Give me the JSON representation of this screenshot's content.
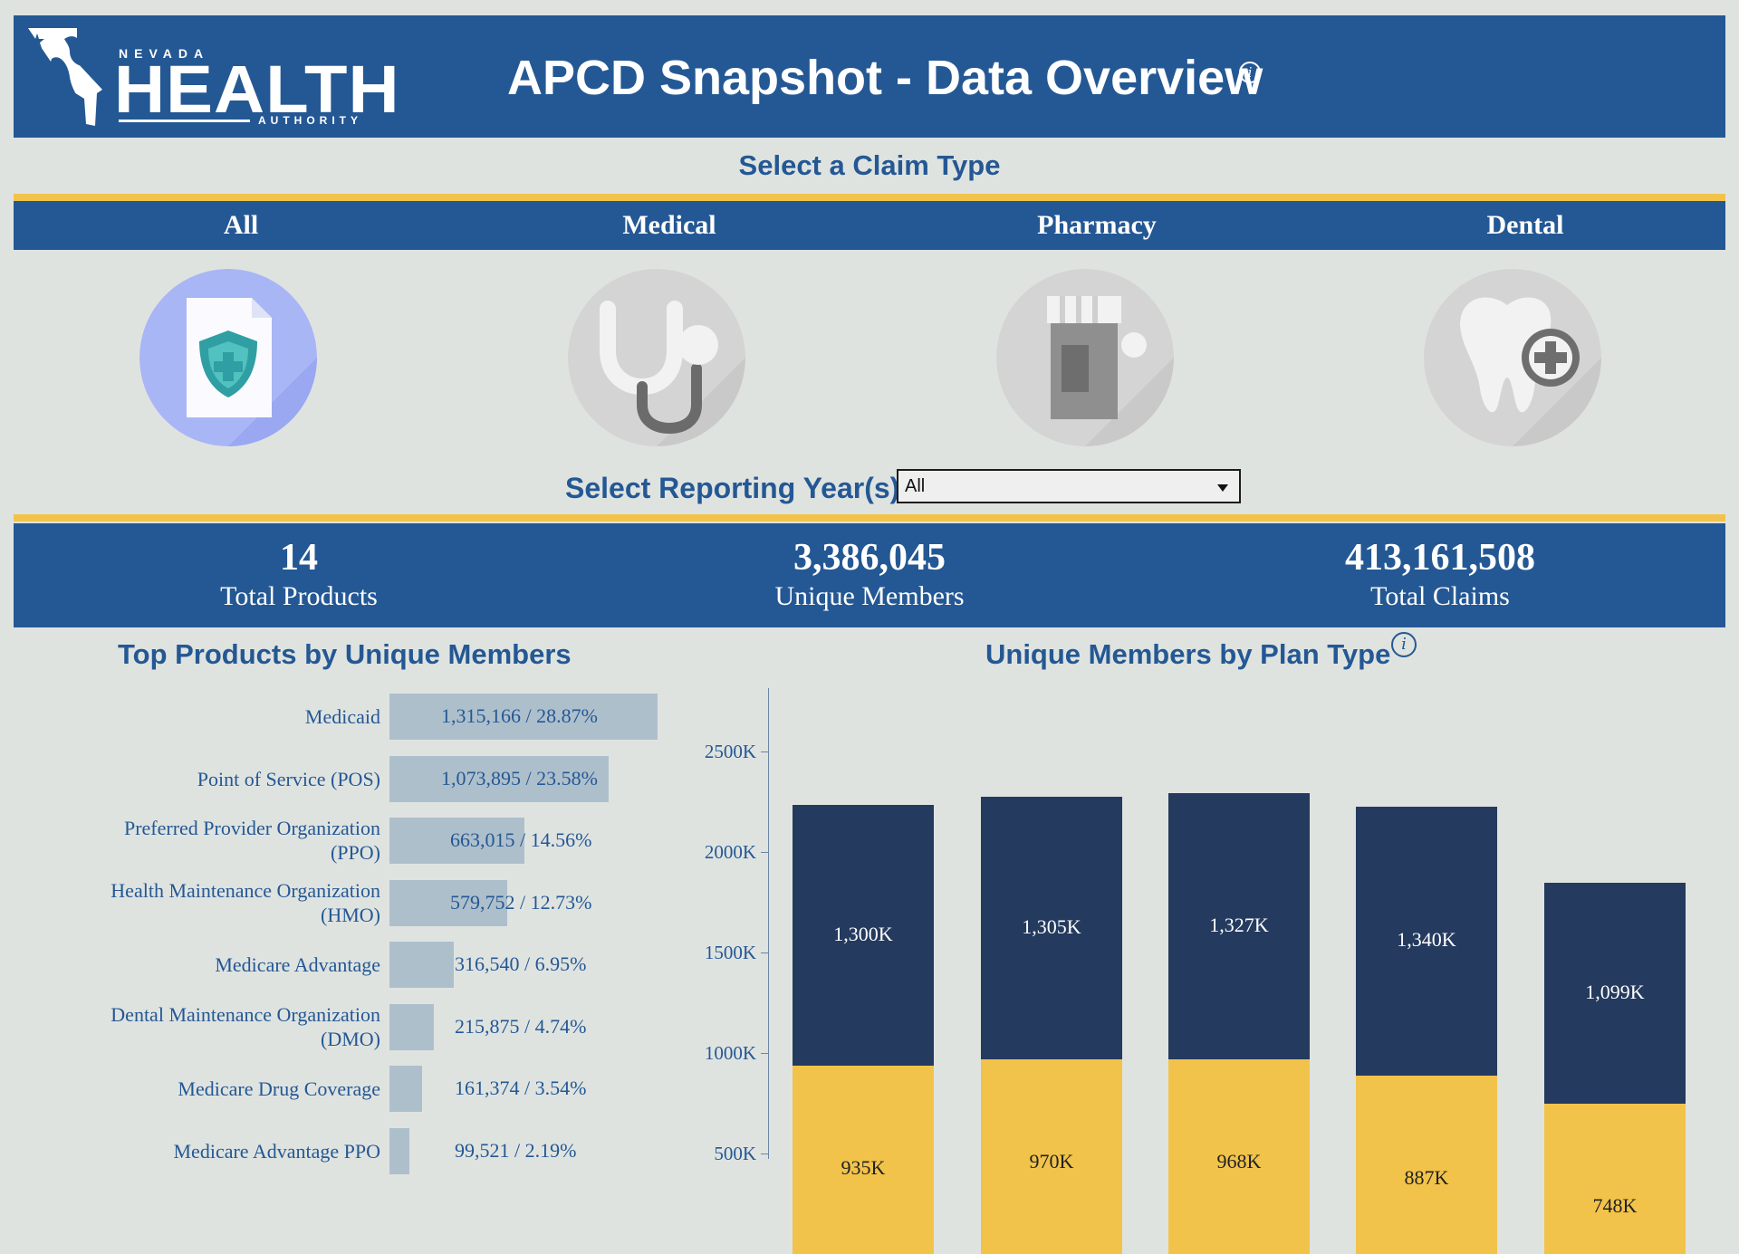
{
  "header": {
    "logo": {
      "line1": "NEVADA",
      "line2": "HEALTH",
      "line3": "AUTHORITY"
    },
    "title": "APCD Snapshot - Data Overview"
  },
  "claim_type": {
    "heading": "Select a Claim Type",
    "tabs": [
      {
        "label": "All",
        "icon": "document-shield-icon",
        "selected": true
      },
      {
        "label": "Medical",
        "icon": "stethoscope-icon",
        "selected": false
      },
      {
        "label": "Pharmacy",
        "icon": "pill-bottle-icon",
        "selected": false
      },
      {
        "label": "Dental",
        "icon": "tooth-plus-icon",
        "selected": false
      }
    ]
  },
  "reporting_year": {
    "label": "Select Reporting Year(s):",
    "value": "All"
  },
  "kpis": [
    {
      "value": "14",
      "label": "Total Products"
    },
    {
      "value": "3,386,045",
      "label": "Unique Members"
    },
    {
      "value": "413,161,508",
      "label": "Total Claims"
    }
  ],
  "colors": {
    "navy": "#245894",
    "gold": "#f2c34a",
    "dark_navy": "#243a5e",
    "bar_gray": "#aebfcc",
    "background": "#dfe3e0"
  },
  "chart_data": [
    {
      "type": "bar",
      "orientation": "horizontal",
      "title": "Top Products by Unique Members",
      "categories": [
        "Medicaid",
        "Point of Service (POS)",
        "Preferred Provider Organization (PPO)",
        "Health Maintenance Organization (HMO)",
        "Medicare Advantage",
        "Dental Maintenance Organization (DMO)",
        "Medicare Drug Coverage",
        "Medicare Advantage PPO"
      ],
      "values": [
        1315166,
        1073895,
        663015,
        579752,
        316540,
        215875,
        161374,
        99521
      ],
      "data_labels": [
        "1,315,166 / 28.87%",
        "1,073,895 / 23.58%",
        "663,015 / 14.56%",
        "579,752 / 12.73%",
        "316,540 / 6.95%",
        "215,875 / 4.74%",
        "161,374 / 3.54%",
        "99,521 / 2.19%"
      ]
    },
    {
      "type": "bar",
      "stacked": true,
      "title": "Unique Members by Plan Type",
      "y_tick_labels": [
        "500K",
        "1000K",
        "1500K",
        "2000K",
        "2500K"
      ],
      "y_ticks": [
        500,
        1000,
        1500,
        2000,
        2500
      ],
      "units": "thousands",
      "series": [
        {
          "color": "#f2c34a",
          "text_color": "#222222",
          "values": [
            935,
            970,
            968,
            887,
            748
          ],
          "labels": [
            "935K",
            "970K",
            "968K",
            "887K",
            "748K"
          ]
        },
        {
          "color": "#243a5e",
          "text_color": "#ffffff",
          "values": [
            1300,
            1305,
            1327,
            1340,
            1099
          ],
          "labels": [
            "1,300K",
            "1,305K",
            "1,327K",
            "1,340K",
            "1,099K"
          ]
        }
      ]
    }
  ]
}
